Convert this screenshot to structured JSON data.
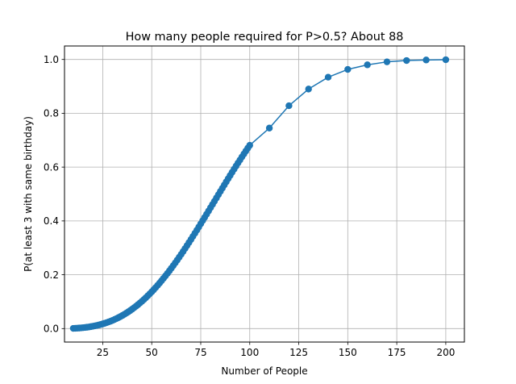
{
  "chart_data": {
    "type": "line",
    "title": "How many people required for P>0.5?  About 88",
    "xlabel": "Number of People",
    "ylabel": "P(at least 3 with same birthday)",
    "xlim": [
      5.5,
      209.5
    ],
    "ylim": [
      -0.05,
      1.05
    ],
    "xticks": [
      25,
      50,
      75,
      100,
      125,
      150,
      175,
      200
    ],
    "yticks": [
      0.0,
      0.2,
      0.4,
      0.6,
      0.8,
      1.0
    ],
    "grid": true,
    "marker": "circle",
    "series_color": "#1f77b4",
    "series": [
      {
        "x": [
          10,
          11,
          12,
          13,
          14,
          15,
          16,
          17,
          18,
          19,
          20,
          21,
          22,
          23,
          24,
          25,
          26,
          27,
          28,
          29,
          30,
          31,
          32,
          33,
          34,
          35,
          36,
          37,
          38,
          39,
          40,
          41,
          42,
          43,
          44,
          45,
          46,
          47,
          48,
          49,
          50,
          51,
          52,
          53,
          54,
          55,
          56,
          57,
          58,
          59,
          60,
          61,
          62,
          63,
          64,
          65,
          66,
          67,
          68,
          69,
          70,
          71,
          72,
          73,
          74,
          75,
          76,
          77,
          78,
          79,
          80,
          81,
          82,
          83,
          84,
          85,
          86,
          87,
          88,
          89,
          90,
          91,
          92,
          93,
          94,
          95,
          96,
          97,
          98,
          99,
          100,
          110,
          120,
          130,
          140,
          150,
          160,
          170,
          180,
          190,
          200
        ],
        "y": [
          0.0009,
          0.0012,
          0.0016,
          0.0021,
          0.0027,
          0.0034,
          0.0042,
          0.0051,
          0.0061,
          0.0073,
          0.0086,
          0.0101,
          0.0117,
          0.0134,
          0.0153,
          0.0174,
          0.0197,
          0.0221,
          0.0247,
          0.0275,
          0.0305,
          0.0337,
          0.0371,
          0.0407,
          0.0445,
          0.0486,
          0.0528,
          0.0573,
          0.062,
          0.0669,
          0.0721,
          0.0775,
          0.0831,
          0.089,
          0.0951,
          0.1014,
          0.108,
          0.1148,
          0.1219,
          0.1292,
          0.1367,
          0.1445,
          0.1525,
          0.1607,
          0.1691,
          0.1778,
          0.1867,
          0.1958,
          0.2051,
          0.2146,
          0.2243,
          0.2342,
          0.2443,
          0.2546,
          0.2651,
          0.2757,
          0.2865,
          0.2974,
          0.3085,
          0.3197,
          0.331,
          0.3425,
          0.354,
          0.3657,
          0.3774,
          0.3893,
          0.4012,
          0.4131,
          0.4251,
          0.4371,
          0.4492,
          0.4613,
          0.4733,
          0.4854,
          0.4975,
          0.5095,
          0.5215,
          0.5335,
          0.5454,
          0.5572,
          0.569,
          0.5807,
          0.5923,
          0.6038,
          0.6152,
          0.6265,
          0.6377,
          0.6487,
          0.6596,
          0.6704,
          0.681,
          0.745,
          0.828,
          0.89,
          0.934,
          0.963,
          0.98,
          0.991,
          0.996,
          0.998,
          0.999
        ]
      }
    ]
  }
}
